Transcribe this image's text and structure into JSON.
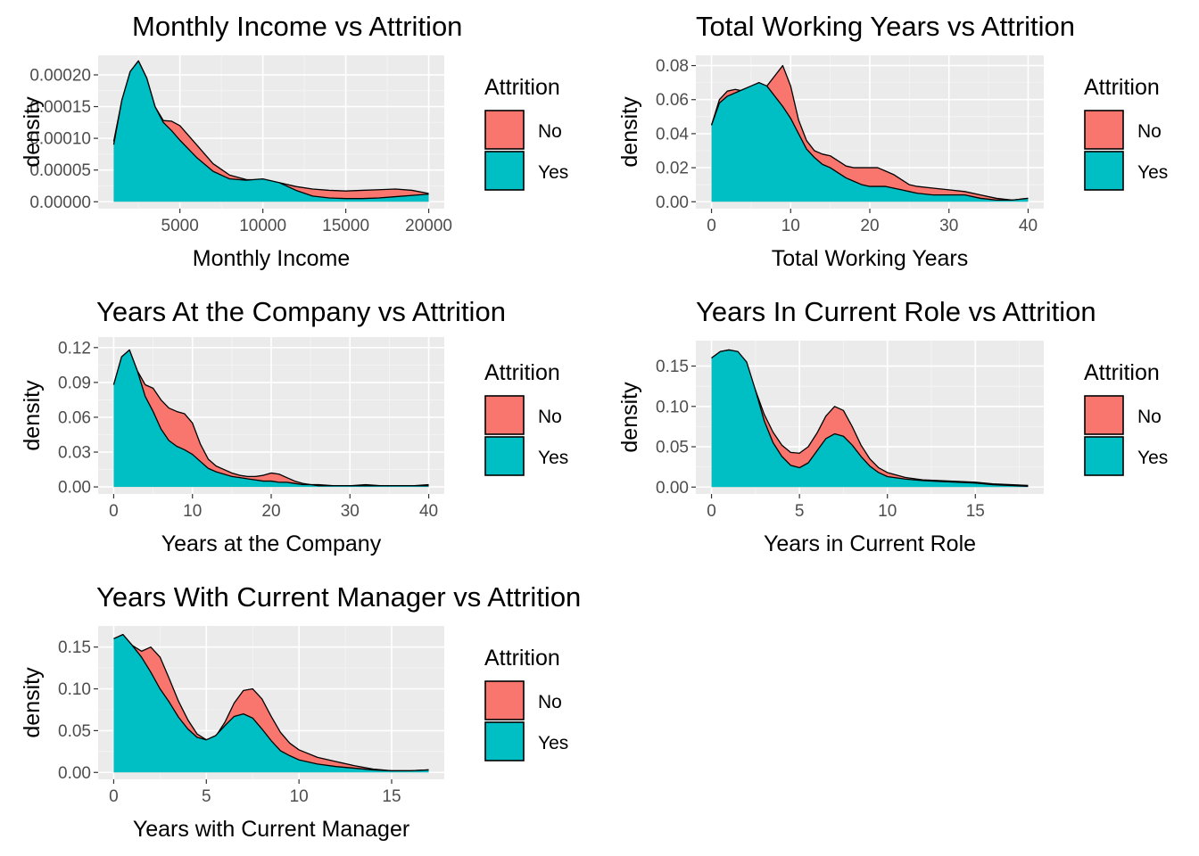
{
  "legend": {
    "title": "Attrition",
    "items": [
      {
        "label": "No",
        "color": "#F8766D"
      },
      {
        "label": "Yes",
        "color": "#00BFC4"
      }
    ]
  },
  "chart_data": [
    {
      "type": "area",
      "title": "Monthly Income vs Attrition",
      "xlabel": "Monthly Income",
      "ylabel": "density",
      "xlim": [
        1009,
        19999
      ],
      "ylim": [
        0,
        0.00022
      ],
      "xticks": [
        5000,
        10000,
        15000,
        20000
      ],
      "xtick_labels": [
        "5000",
        "10000",
        "15000",
        "20000"
      ],
      "yticks": [
        0,
        5e-05,
        0.0001,
        0.00015,
        0.0002
      ],
      "ytick_labels": [
        "0.00000",
        "0.00005",
        "0.00010",
        "0.00015",
        "0.00020"
      ],
      "grid": true,
      "legend_position": "right",
      "series": [
        {
          "name": "No",
          "x": [
            1009,
            1500,
            2000,
            2500,
            3000,
            3500,
            4000,
            4500,
            5000,
            6000,
            7000,
            8000,
            9000,
            10000,
            11000,
            12000,
            13000,
            14000,
            15000,
            16000,
            17000,
            18000,
            19000,
            19999
          ],
          "y": [
            9.5e-05,
            0.00016,
            0.000205,
            0.000222,
            0.000195,
            0.00015,
            0.000128,
            0.000127,
            0.00012,
            9e-05,
            6e-05,
            4.2e-05,
            3.5e-05,
            3.4e-05,
            3e-05,
            2.4e-05,
            2e-05,
            1.8e-05,
            1.7e-05,
            1.8e-05,
            1.9e-05,
            2e-05,
            1.8e-05,
            1.3e-05
          ]
        },
        {
          "name": "Yes",
          "x": [
            1009,
            1500,
            2000,
            2500,
            3000,
            3500,
            4000,
            4500,
            5000,
            6000,
            7000,
            8000,
            9000,
            10000,
            11000,
            12000,
            13000,
            14000,
            15000,
            16000,
            17000,
            18000,
            19000,
            19999
          ],
          "y": [
            9e-05,
            0.00016,
            0.000205,
            0.000222,
            0.000195,
            0.00015,
            0.000125,
            0.000112,
            9.7e-05,
            7e-05,
            4.8e-05,
            3.6e-05,
            3.4e-05,
            3.6e-05,
            3e-05,
            1.8e-05,
            9e-06,
            6e-06,
            5e-06,
            5e-06,
            6e-06,
            8e-06,
            1e-05,
            1.2e-05
          ]
        }
      ]
    },
    {
      "type": "area",
      "title": "Total Working Years vs Attrition",
      "xlabel": "Total Working Years",
      "ylabel": "density",
      "xlim": [
        0,
        40
      ],
      "ylim": [
        0,
        0.082
      ],
      "xticks": [
        0,
        10,
        20,
        30,
        40
      ],
      "xtick_labels": [
        "0",
        "10",
        "20",
        "30",
        "40"
      ],
      "yticks": [
        0,
        0.02,
        0.04,
        0.06,
        0.08
      ],
      "ytick_labels": [
        "0.00",
        "0.02",
        "0.04",
        "0.06",
        "0.08"
      ],
      "grid": true,
      "legend_position": "right",
      "series": [
        {
          "name": "No",
          "x": [
            0,
            1,
            2,
            3,
            4,
            5,
            6,
            7,
            8,
            9,
            10,
            11,
            12,
            13,
            14,
            15,
            16,
            17,
            18,
            19,
            20,
            21,
            22,
            23,
            24,
            25,
            26,
            28,
            30,
            32,
            34,
            36,
            38,
            40
          ],
          "y": [
            0.045,
            0.06,
            0.065,
            0.066,
            0.065,
            0.064,
            0.065,
            0.068,
            0.074,
            0.08,
            0.068,
            0.048,
            0.036,
            0.03,
            0.028,
            0.027,
            0.024,
            0.021,
            0.02,
            0.02,
            0.02,
            0.02,
            0.018,
            0.016,
            0.013,
            0.01,
            0.009,
            0.008,
            0.007,
            0.006,
            0.004,
            0.002,
            0.001,
            0.002
          ]
        },
        {
          "name": "Yes",
          "x": [
            0,
            1,
            2,
            3,
            4,
            5,
            6,
            7,
            8,
            9,
            10,
            11,
            12,
            13,
            14,
            15,
            16,
            17,
            18,
            19,
            20,
            21,
            22,
            23,
            24,
            25,
            26,
            28,
            30,
            32,
            34,
            36,
            38,
            40
          ],
          "y": [
            0.045,
            0.058,
            0.062,
            0.064,
            0.066,
            0.068,
            0.07,
            0.068,
            0.062,
            0.056,
            0.049,
            0.04,
            0.031,
            0.026,
            0.022,
            0.02,
            0.017,
            0.014,
            0.012,
            0.01,
            0.009,
            0.009,
            0.009,
            0.008,
            0.007,
            0.006,
            0.005,
            0.004,
            0.004,
            0.004,
            0.002,
            0.001,
            0.001,
            0.002
          ]
        }
      ]
    },
    {
      "type": "area",
      "title": "Years At the Company vs Attrition",
      "xlabel": "Years at the Company",
      "ylabel": "density",
      "xlim": [
        0,
        40
      ],
      "ylim": [
        0,
        0.123
      ],
      "xticks": [
        0,
        10,
        20,
        30,
        40
      ],
      "xtick_labels": [
        "0",
        "10",
        "20",
        "30",
        "40"
      ],
      "yticks": [
        0,
        0.03,
        0.06,
        0.09,
        0.12
      ],
      "ytick_labels": [
        "0.00",
        "0.03",
        "0.06",
        "0.09",
        "0.12"
      ],
      "grid": true,
      "legend_position": "right",
      "series": [
        {
          "name": "No",
          "x": [
            0,
            1,
            2,
            3,
            4,
            5,
            6,
            7,
            8,
            9,
            10,
            11,
            12,
            13,
            14,
            15,
            16,
            17,
            18,
            19,
            20,
            21,
            22,
            23,
            24,
            25,
            26,
            28,
            30,
            32,
            34,
            36,
            38,
            40
          ],
          "y": [
            0.088,
            0.112,
            0.118,
            0.1,
            0.088,
            0.085,
            0.075,
            0.068,
            0.065,
            0.063,
            0.055,
            0.037,
            0.024,
            0.018,
            0.015,
            0.012,
            0.01,
            0.009,
            0.009,
            0.01,
            0.012,
            0.011,
            0.008,
            0.005,
            0.003,
            0.002,
            0.002,
            0.001,
            0.001,
            0.002,
            0.001,
            0.001,
            0.001,
            0.002
          ]
        },
        {
          "name": "Yes",
          "x": [
            0,
            1,
            2,
            3,
            4,
            5,
            6,
            7,
            8,
            9,
            10,
            11,
            12,
            13,
            14,
            15,
            16,
            17,
            18,
            19,
            20,
            21,
            22,
            23,
            24,
            25,
            26,
            28,
            30,
            32,
            34,
            36,
            38,
            40
          ],
          "y": [
            0.088,
            0.112,
            0.118,
            0.1,
            0.078,
            0.065,
            0.05,
            0.04,
            0.035,
            0.032,
            0.028,
            0.022,
            0.016,
            0.013,
            0.011,
            0.009,
            0.008,
            0.007,
            0.006,
            0.005,
            0.005,
            0.004,
            0.004,
            0.003,
            0.002,
            0.002,
            0.001,
            0.001,
            0.001,
            0.001,
            0.001,
            0.001,
            0.001,
            0.001
          ]
        }
      ]
    },
    {
      "type": "area",
      "title": "Years In Current Role vs Attrition",
      "xlabel": "Years in Current Role",
      "ylabel": "density",
      "xlim": [
        0,
        18
      ],
      "ylim": [
        0,
        0.173
      ],
      "xticks": [
        0,
        5,
        10,
        15
      ],
      "xtick_labels": [
        "0",
        "5",
        "10",
        "15"
      ],
      "yticks": [
        0,
        0.05,
        0.1,
        0.15
      ],
      "ytick_labels": [
        "0.00",
        "0.05",
        "0.10",
        "0.15"
      ],
      "grid": true,
      "legend_position": "right",
      "series": [
        {
          "name": "No",
          "x": [
            0,
            0.5,
            1,
            1.5,
            2,
            2.5,
            3,
            3.5,
            4,
            4.5,
            5,
            5.5,
            6,
            6.5,
            7,
            7.5,
            8,
            8.5,
            9,
            9.5,
            10,
            11,
            12,
            13,
            14,
            15,
            16,
            17,
            18
          ],
          "y": [
            0.16,
            0.168,
            0.17,
            0.166,
            0.15,
            0.12,
            0.09,
            0.068,
            0.052,
            0.043,
            0.042,
            0.05,
            0.067,
            0.088,
            0.1,
            0.095,
            0.075,
            0.052,
            0.035,
            0.024,
            0.018,
            0.012,
            0.009,
            0.008,
            0.007,
            0.006,
            0.004,
            0.003,
            0.002
          ]
        },
        {
          "name": "Yes",
          "x": [
            0,
            0.5,
            1,
            1.5,
            2,
            2.5,
            3,
            3.5,
            4,
            4.5,
            5,
            5.5,
            6,
            6.5,
            7,
            7.5,
            8,
            8.5,
            9,
            9.5,
            10,
            11,
            12,
            13,
            14,
            15,
            16,
            17,
            18
          ],
          "y": [
            0.16,
            0.168,
            0.17,
            0.168,
            0.155,
            0.12,
            0.082,
            0.055,
            0.038,
            0.027,
            0.024,
            0.03,
            0.045,
            0.06,
            0.066,
            0.063,
            0.052,
            0.038,
            0.026,
            0.018,
            0.013,
            0.01,
            0.008,
            0.007,
            0.006,
            0.005,
            0.003,
            0.002,
            0.001
          ]
        }
      ]
    },
    {
      "type": "area",
      "title": "Years With Current Manager vs Attrition",
      "xlabel": "Years with Current Manager",
      "ylabel": "density",
      "xlim": [
        0,
        17
      ],
      "ylim": [
        0,
        0.167
      ],
      "xticks": [
        0,
        5,
        10,
        15
      ],
      "xtick_labels": [
        "0",
        "5",
        "10",
        "15"
      ],
      "yticks": [
        0,
        0.05,
        0.1,
        0.15
      ],
      "ytick_labels": [
        "0.00",
        "0.05",
        "0.10",
        "0.15"
      ],
      "grid": true,
      "legend_position": "right",
      "series": [
        {
          "name": "No",
          "x": [
            0,
            0.5,
            1,
            1.5,
            2,
            2.5,
            3,
            3.5,
            4,
            4.5,
            5,
            5.5,
            6,
            6.5,
            7,
            7.5,
            8,
            8.5,
            9,
            9.5,
            10,
            11,
            12,
            13,
            14,
            15,
            16,
            17
          ],
          "y": [
            0.16,
            0.165,
            0.152,
            0.145,
            0.15,
            0.138,
            0.112,
            0.085,
            0.063,
            0.046,
            0.039,
            0.043,
            0.06,
            0.083,
            0.098,
            0.1,
            0.088,
            0.067,
            0.048,
            0.035,
            0.027,
            0.018,
            0.013,
            0.008,
            0.004,
            0.002,
            0.002,
            0.003
          ]
        },
        {
          "name": "Yes",
          "x": [
            0,
            0.5,
            1,
            1.5,
            2,
            2.5,
            3,
            3.5,
            4,
            4.5,
            5,
            5.5,
            6,
            6.5,
            7,
            7.5,
            8,
            8.5,
            9,
            9.5,
            10,
            11,
            12,
            13,
            14,
            15,
            16,
            17
          ],
          "y": [
            0.16,
            0.165,
            0.152,
            0.138,
            0.12,
            0.1,
            0.084,
            0.066,
            0.052,
            0.042,
            0.039,
            0.044,
            0.056,
            0.067,
            0.07,
            0.065,
            0.052,
            0.038,
            0.026,
            0.02,
            0.015,
            0.01,
            0.007,
            0.005,
            0.003,
            0.002,
            0.002,
            0.003
          ]
        }
      ]
    }
  ]
}
